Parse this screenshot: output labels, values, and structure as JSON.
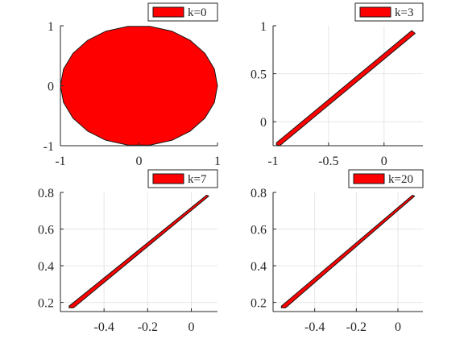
{
  "style": {
    "fill_color": "#ff0000",
    "edge_color": "#1a1a1a",
    "grid_color": "#e6e6e6",
    "axis_color": "#262626"
  },
  "chart_data": [
    {
      "type": "area",
      "shape": "polygon",
      "legend": "k=0",
      "legend_position": "top-right",
      "grid": true,
      "xlim": [
        -1,
        1
      ],
      "ylim": [
        -1,
        1
      ],
      "xticks": [
        -1,
        0,
        1
      ],
      "xtick_labels": [
        "-1",
        "0",
        "1"
      ],
      "yticks": [
        -1,
        0,
        1
      ],
      "ytick_labels": [
        "-1",
        "0",
        "1"
      ],
      "vertices": [
        [
          1,
          0
        ],
        [
          0.96,
          0.28
        ],
        [
          0.84,
          0.54
        ],
        [
          0.65,
          0.76
        ],
        [
          0.42,
          0.91
        ],
        [
          0.14,
          0.99
        ],
        [
          -0.14,
          0.99
        ],
        [
          -0.42,
          0.91
        ],
        [
          -0.65,
          0.76
        ],
        [
          -0.84,
          0.54
        ],
        [
          -0.96,
          0.28
        ],
        [
          -1,
          0
        ],
        [
          -0.96,
          -0.28
        ],
        [
          -0.84,
          -0.54
        ],
        [
          -0.65,
          -0.76
        ],
        [
          -0.42,
          -0.91
        ],
        [
          -0.14,
          -0.99
        ],
        [
          0.14,
          -0.99
        ],
        [
          0.42,
          -0.91
        ],
        [
          0.65,
          -0.76
        ],
        [
          0.84,
          -0.54
        ],
        [
          0.96,
          -0.28
        ]
      ]
    },
    {
      "type": "area",
      "shape": "polygon",
      "legend": "k=3",
      "legend_position": "top-right",
      "grid": true,
      "xlim": [
        -1,
        0.35
      ],
      "ylim": [
        -0.25,
        1
      ],
      "xticks": [
        -1,
        -0.5,
        0
      ],
      "xtick_labels": [
        "-1",
        "-0.5",
        "0"
      ],
      "yticks": [
        0,
        0.5,
        1
      ],
      "ytick_labels": [
        "0",
        "0.5",
        "1"
      ],
      "vertices": [
        [
          -0.97,
          -0.24
        ],
        [
          -0.94,
          -0.25
        ],
        [
          0.28,
          0.92
        ],
        [
          0.25,
          0.95
        ],
        [
          -0.97,
          -0.22
        ]
      ]
    },
    {
      "type": "area",
      "shape": "polygon",
      "legend": "k=7",
      "legend_position": "top-right",
      "grid": true,
      "xlim": [
        -0.6,
        0.12
      ],
      "ylim": [
        0.15,
        0.8
      ],
      "xticks": [
        -0.4,
        -0.2,
        0
      ],
      "xtick_labels": [
        "-0.4",
        "-0.2",
        "0"
      ],
      "yticks": [
        0.2,
        0.4,
        0.6,
        0.8
      ],
      "ytick_labels": [
        "0.2",
        "0.4",
        "0.6",
        "0.8"
      ],
      "vertices": [
        [
          -0.56,
          0.17
        ],
        [
          -0.54,
          0.17
        ],
        [
          0.08,
          0.78
        ],
        [
          0.07,
          0.785
        ],
        [
          -0.56,
          0.18
        ]
      ]
    },
    {
      "type": "area",
      "shape": "polygon",
      "legend": "k=20",
      "legend_position": "top-right",
      "grid": true,
      "xlim": [
        -0.6,
        0.12
      ],
      "ylim": [
        0.15,
        0.8
      ],
      "xticks": [
        -0.4,
        -0.2,
        0
      ],
      "xtick_labels": [
        "-0.4",
        "-0.2",
        "0"
      ],
      "yticks": [
        0.2,
        0.4,
        0.6,
        0.8
      ],
      "ytick_labels": [
        "0.2",
        "0.4",
        "0.6",
        "0.8"
      ],
      "vertices": [
        [
          -0.56,
          0.17
        ],
        [
          -0.54,
          0.17
        ],
        [
          0.08,
          0.78
        ],
        [
          0.07,
          0.785
        ],
        [
          -0.56,
          0.18
        ]
      ]
    }
  ]
}
